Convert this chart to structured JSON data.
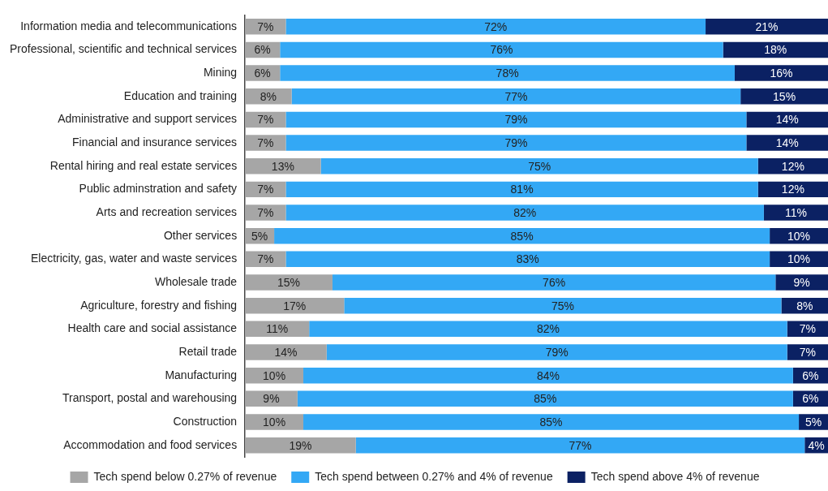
{
  "chart_data": {
    "type": "bar",
    "orientation": "horizontal",
    "stacked": true,
    "legend": "bottom",
    "grid": false,
    "tick_labels": "y",
    "categories": [
      "Information media and telecommunications",
      "Professional, scientific and technical services",
      "Mining",
      "Education and training",
      "Administrative and support services",
      "Financial and insurance services",
      "Rental hiring and real estate services",
      "Public adminstration and safety",
      "Arts and recreation services",
      "Other services",
      "Electricity, gas, water and waste services",
      "Wholesale trade",
      "Agriculture, forestry and fishing",
      "Health care and social assistance",
      "Retail trade",
      "Manufacturing",
      "Transport, postal and warehousing",
      "Construction",
      "Accommodation and food services"
    ],
    "series": [
      {
        "name": "Tech spend below 0.27% of revenue",
        "color": "#a6a6a6",
        "values": [
          7,
          6,
          6,
          8,
          7,
          7,
          13,
          7,
          7,
          5,
          7,
          15,
          17,
          11,
          14,
          10,
          9,
          10,
          19
        ],
        "value_labels": [
          "7%",
          "6%",
          "6%",
          "8%",
          "7%",
          "7%",
          "13%",
          "7%",
          "7%",
          "5%",
          "7%",
          "15%",
          "17%",
          "11%",
          "14%",
          "10%",
          "9%",
          "10%",
          "19%"
        ]
      },
      {
        "name": "Tech spend between 0.27% and 4% of revenue",
        "color": "#33a8f5",
        "values": [
          72,
          76,
          78,
          77,
          79,
          79,
          75,
          81,
          82,
          85,
          83,
          76,
          75,
          82,
          79,
          84,
          85,
          85,
          77
        ],
        "value_labels": [
          "72%",
          "76%",
          "78%",
          "77%",
          "79%",
          "79%",
          "75%",
          "81%",
          "82%",
          "85%",
          "83%",
          "76%",
          "75%",
          "82%",
          "79%",
          "84%",
          "85%",
          "85%",
          "77%"
        ]
      },
      {
        "name": "Tech spend above 4% of revenue",
        "color": "#0b2163",
        "values": [
          21,
          18,
          16,
          15,
          14,
          14,
          12,
          12,
          11,
          10,
          10,
          9,
          8,
          7,
          7,
          6,
          6,
          5,
          4
        ],
        "value_labels": [
          "21%",
          "18%",
          "16%",
          "15%",
          "14%",
          "14%",
          "12%",
          "12%",
          "11%",
          "10%",
          "10%",
          "9%",
          "8%",
          "7%",
          "7%",
          "6%",
          "6%",
          "5%",
          "4%"
        ]
      }
    ]
  }
}
